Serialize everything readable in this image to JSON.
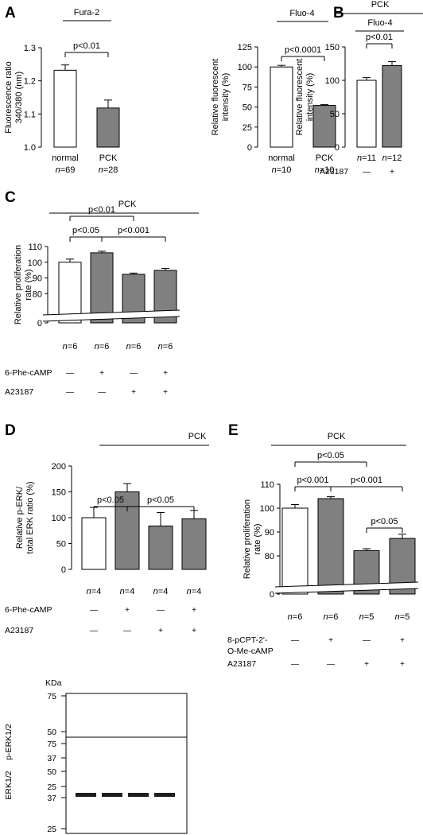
{
  "panels": {
    "A": {
      "letter": "A"
    },
    "B": {
      "letter": "B"
    },
    "C": {
      "letter": "C"
    },
    "D": {
      "letter": "D"
    },
    "E": {
      "letter": "E"
    }
  },
  "colors": {
    "open_bar": "#ffffff",
    "filled_bar": "#808080",
    "line": "#000000"
  },
  "chart_data": [
    {
      "id": "A1",
      "type": "bar",
      "title": "Fura-2",
      "ylabel": [
        "Fluorescence ratio",
        "340/380 (nm)"
      ],
      "ylim": [
        1.0,
        1.3
      ],
      "yticks": [
        "1.0",
        "1.1",
        "1.2",
        "1.3"
      ],
      "categories": [
        "normal",
        "PCK"
      ],
      "values": [
        1.232,
        1.118
      ],
      "errors": [
        0.016,
        0.024
      ],
      "fills": [
        "open",
        "filled"
      ],
      "n_labels": [
        "n=69",
        "n=28"
      ],
      "brackets": [
        {
          "label": "p<0.01"
        }
      ]
    },
    {
      "id": "A2",
      "type": "bar",
      "title": "Fluo-4",
      "ylabel": [
        "Relative fluorescent",
        "intensity (%)"
      ],
      "ylim": [
        0,
        125
      ],
      "yticks": [
        "0",
        "25",
        "50",
        "75",
        "100",
        "125"
      ],
      "categories": [
        "normal",
        "PCK"
      ],
      "values": [
        100,
        52
      ],
      "errors": [
        2,
        1
      ],
      "fills": [
        "open",
        "filled"
      ],
      "n_labels": [
        "n=10",
        "n=10"
      ],
      "brackets": [
        {
          "label": "p<0.0001"
        }
      ]
    },
    {
      "id": "B",
      "type": "bar",
      "group_label": "PCK",
      "title": "Fluo-4",
      "ylabel": [
        "Relative fluorescent",
        "intensity (%)"
      ],
      "ylim": [
        0,
        150
      ],
      "yticks": [
        "0",
        "50",
        "100",
        "150"
      ],
      "values": [
        100,
        122
      ],
      "errors": [
        4,
        6
      ],
      "fills": [
        "open",
        "filled"
      ],
      "n_labels": [
        "n=11",
        "n=12"
      ],
      "treatments": [
        {
          "name": "A23187",
          "signs": [
            "—",
            "+"
          ]
        }
      ],
      "brackets": [
        {
          "label": "p<0.01"
        }
      ]
    },
    {
      "id": "C",
      "type": "bar",
      "group_label": "PCK",
      "ylabel": [
        "Relative proliferation",
        "rate (%)"
      ],
      "ylim": [
        70,
        110
      ],
      "axis_break": true,
      "yticks": [
        "0",
        "80",
        "90",
        "100",
        "110"
      ],
      "values": [
        100,
        106,
        92.3,
        94.8
      ],
      "errors": [
        2,
        1,
        0.8,
        1.3
      ],
      "fills": [
        "open",
        "filled",
        "filled",
        "filled"
      ],
      "n_labels": [
        "n=6",
        "n=6",
        "n=6",
        "n=6"
      ],
      "treatments": [
        {
          "name": "6-Phe-cAMP",
          "signs": [
            "—",
            "+",
            "—",
            "+"
          ]
        },
        {
          "name": "A23187",
          "signs": [
            "—",
            "—",
            "+",
            "+"
          ]
        }
      ],
      "brackets": [
        {
          "label": "p<0.05"
        },
        {
          "label": "p<0.01"
        },
        {
          "label": "p<0.001"
        }
      ]
    },
    {
      "id": "D",
      "type": "bar",
      "group_label": "PCK",
      "ylabel": [
        "Relative p-ERK/",
        "total ERK ratio (%)"
      ],
      "ylim": [
        0,
        200
      ],
      "yticks": [
        "0",
        "50",
        "100",
        "150",
        "200"
      ],
      "values": [
        100,
        150,
        84,
        98
      ],
      "errors": [
        20,
        16,
        26,
        16
      ],
      "fills": [
        "open",
        "filled",
        "filled",
        "filled"
      ],
      "n_labels": [
        "n=4",
        "n=4",
        "n=4",
        "n=4"
      ],
      "treatments": [
        {
          "name": "6-Phe-cAMP",
          "signs": [
            "—",
            "+",
            "—",
            "+"
          ]
        },
        {
          "name": "A23187",
          "signs": [
            "—",
            "—",
            "+",
            "+"
          ]
        }
      ],
      "brackets": [
        {
          "label": "p<0.05"
        },
        {
          "label": "p<0.05"
        }
      ],
      "blot": {
        "unit": "KDa",
        "markers": [
          "75",
          "50",
          "37",
          "25"
        ],
        "rows": [
          "p-ERK1/2",
          "ERK1/2"
        ]
      }
    },
    {
      "id": "E",
      "type": "bar",
      "group_label": "PCK",
      "ylabel": [
        "Relative proliferation",
        "rate (%)"
      ],
      "ylim": [
        70,
        110
      ],
      "axis_break": true,
      "yticks": [
        "0",
        "80",
        "90",
        "100",
        "110"
      ],
      "values": [
        100,
        104,
        82.2,
        87.3
      ],
      "errors": [
        1.5,
        0.8,
        0.8,
        1.8
      ],
      "fills": [
        "open",
        "filled",
        "filled",
        "filled"
      ],
      "n_labels": [
        "n=6",
        "n=6",
        "n=5",
        "n=5"
      ],
      "treatments": [
        {
          "name": "8-pCPT-2'-",
          "name2": "O-Me-cAMP",
          "signs": [
            "—",
            "+",
            "—",
            "+"
          ]
        },
        {
          "name": "A23187",
          "signs": [
            "—",
            "—",
            "+",
            "+"
          ]
        }
      ],
      "brackets": [
        {
          "label": "p<0.05"
        },
        {
          "label": "p<0.001"
        },
        {
          "label": "p<0.001"
        },
        {
          "label": "p<0.05"
        }
      ]
    }
  ]
}
